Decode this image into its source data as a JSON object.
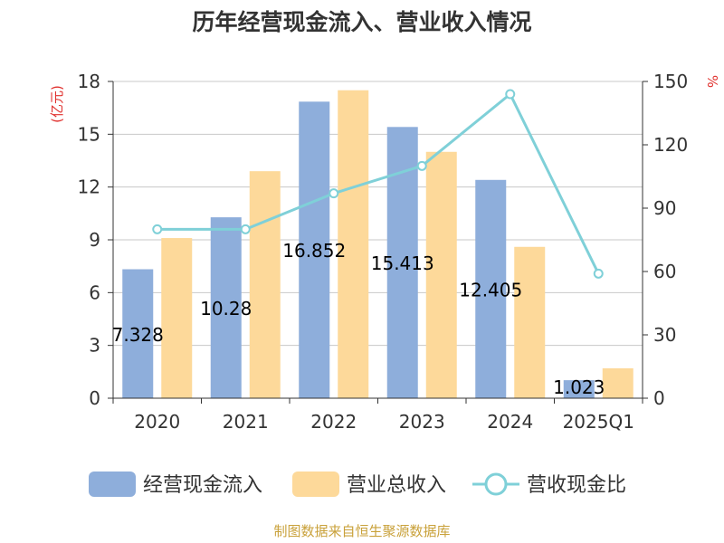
{
  "chart_data": {
    "type": "bar",
    "title": "历年经营现金流入、营业收入情况",
    "categories": [
      "2020",
      "2021",
      "2022",
      "2023",
      "2024",
      "2025Q1"
    ],
    "y_left_label": "(亿元)",
    "y_right_label": "%",
    "y_left_ticks": [
      "0",
      "3",
      "6",
      "9",
      "12",
      "15",
      "18"
    ],
    "y_right_ticks": [
      "0",
      "30",
      "60",
      "90",
      "120",
      "150"
    ],
    "ylim_left": [
      0,
      18
    ],
    "ylim_right": [
      0,
      150
    ],
    "series": [
      {
        "name": "经营现金流入",
        "type": "bar",
        "axis": "left",
        "color": "#8eaedb",
        "values": [
          7.328,
          10.28,
          16.852,
          15.413,
          12.405,
          1.023
        ],
        "labels": [
          "7.328",
          "10.28",
          "16.852",
          "15.413",
          "12.405",
          "1.023"
        ]
      },
      {
        "name": "营业总收入",
        "type": "bar",
        "axis": "left",
        "color": "#fdd99a",
        "values": [
          9.1,
          12.9,
          17.5,
          14.0,
          8.6,
          1.7
        ]
      },
      {
        "name": "营收现金比",
        "type": "line",
        "axis": "right",
        "color": "#7fd0d8",
        "values": [
          80,
          80,
          97,
          110,
          144,
          59
        ]
      }
    ],
    "grid": true,
    "legend_position": "bottom"
  },
  "colors": {
    "axis": "#333333",
    "grid": "#c8c8c8",
    "unit": "#e0312e",
    "title": "#333333",
    "source": "#c9a13a"
  },
  "source_text": "制图数据来自恒生聚源数据库"
}
